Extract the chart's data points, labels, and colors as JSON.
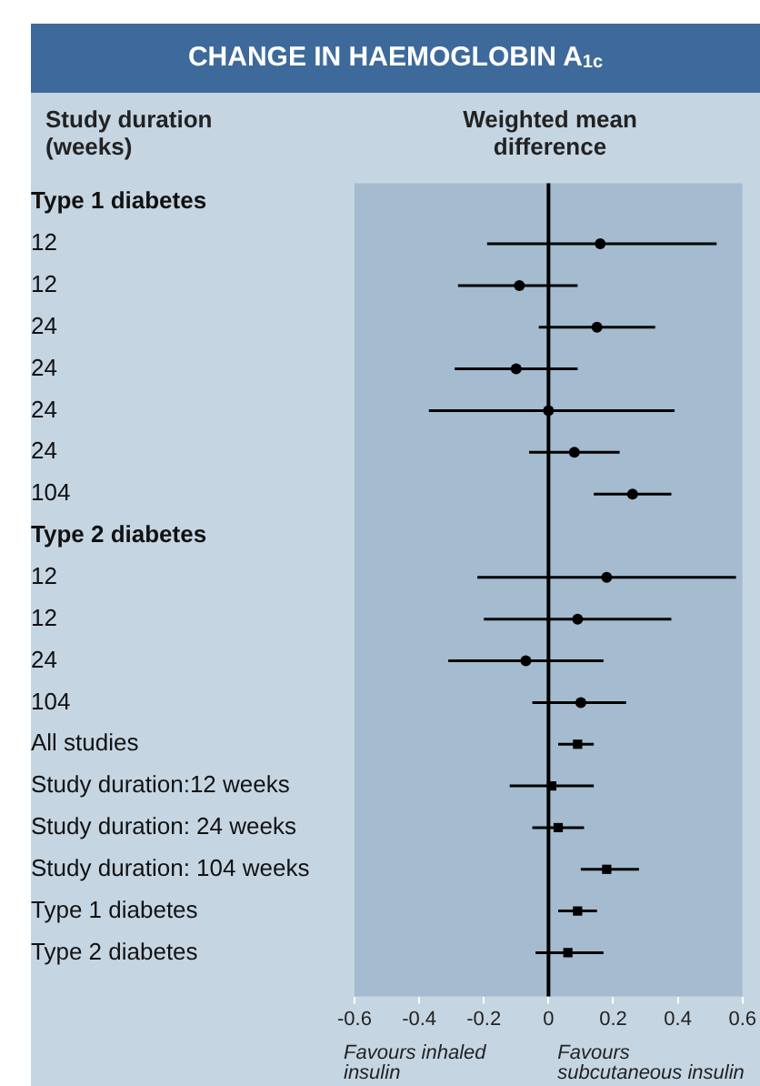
{
  "chart_data": {
    "type": "scatter",
    "orientation": "horizontal",
    "title": "CHANGE IN HAEMOGLOBIN A$_{1c}$",
    "xlabel": "Weighted mean difference",
    "ylabel": "Study duration (weeks)",
    "categories": [
      "Type 1 diabetes",
      "12",
      "12",
      "24",
      "24",
      "24",
      "24",
      "104",
      "Type 2 diabetes",
      "12",
      "12",
      "24",
      "104",
      "All studies",
      "Study duration:12 weeks",
      "Study duration: 24 weeks",
      "Study duration: 104 weeks",
      "Type 1 diabetes",
      "Type 2 diabetes"
    ],
    "series": [
      {
        "color": "#000000",
        "marker": "circle",
        "values": [
          null,
          0.16,
          -0.09,
          0.15,
          -0.1,
          0,
          0.08,
          0.26,
          null,
          0.18,
          0.09,
          -0.07,
          0.1,
          null,
          null,
          null,
          null,
          null,
          null
        ],
        "errors": [
          null,
          [
            -0.19,
            0.52
          ],
          [
            -0.28,
            0.09
          ],
          [
            -0.03,
            0.33
          ],
          [
            -0.29,
            0.09
          ],
          [
            -0.37,
            0.39
          ],
          [
            -0.06,
            0.22
          ],
          [
            0.14,
            0.38
          ],
          null,
          [
            -0.22,
            0.58
          ],
          [
            -0.2,
            0.38
          ],
          [
            -0.31,
            0.17
          ],
          [
            -0.05,
            0.24
          ],
          null,
          null,
          null,
          null,
          null,
          null
        ]
      },
      {
        "color": "#000000",
        "marker": "square",
        "values": [
          null,
          null,
          null,
          null,
          null,
          null,
          null,
          null,
          null,
          null,
          null,
          null,
          null,
          0.09,
          0.01,
          0.03,
          0.18,
          0.09,
          0.06
        ],
        "errors": [
          null,
          null,
          null,
          null,
          null,
          null,
          null,
          null,
          null,
          null,
          null,
          null,
          null,
          [
            0.03,
            0.14
          ],
          [
            -0.12,
            0.14
          ],
          [
            -0.05,
            0.11
          ],
          [
            0.1,
            0.28
          ],
          [
            0.03,
            0.15
          ],
          [
            -0.04,
            0.17
          ]
        ]
      }
    ],
    "xlim": [
      -0.6,
      0.6
    ],
    "xticks": [
      -0.6,
      -0.4,
      -0.2,
      0,
      0.2,
      0.4,
      0.6
    ],
    "ref_lines": [
      {
        "axis": "x",
        "value": 0,
        "color": "#000000"
      }
    ],
    "annotations": [
      "Favours inhaled insulin",
      "Favours subcutaneous insulin"
    ]
  }
}
